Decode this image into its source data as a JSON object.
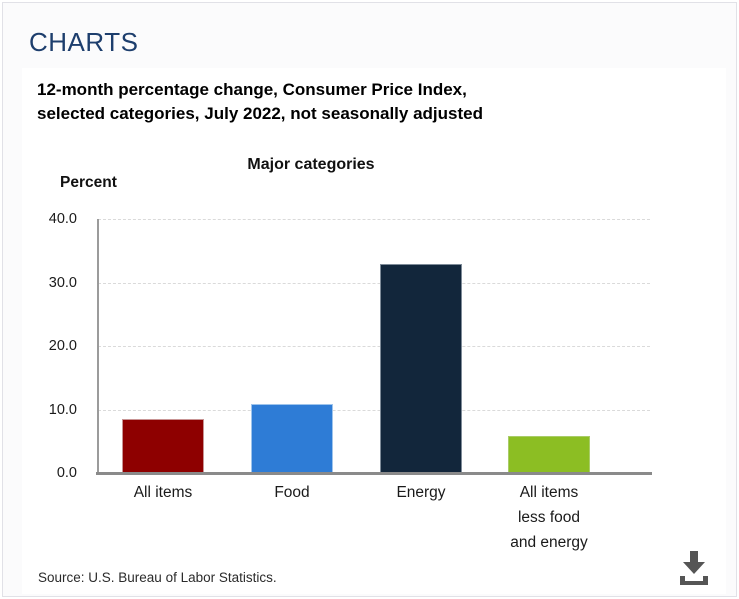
{
  "page": {
    "header": "CHARTS"
  },
  "chart": {
    "title_line1": "12-month percentage change, Consumer Price Index,",
    "title_line2": "selected categories, July 2022, not seasonally adjusted",
    "source": "Source: U.S. Bureau of Labor Statistics.",
    "download_icon": "download-icon"
  },
  "chart_data": {
    "type": "bar",
    "title": "Major categories",
    "ylabel": "Percent",
    "categories": [
      "All items",
      "Food",
      "Energy",
      "All items less food and energy"
    ],
    "category_display_lines": [
      [
        "All items"
      ],
      [
        "Food"
      ],
      [
        "Energy"
      ],
      [
        "All items",
        "less food",
        "and energy"
      ]
    ],
    "values": [
      8.5,
      10.9,
      32.9,
      5.9
    ],
    "bar_colors": [
      "#8E0000",
      "#2E7CD6",
      "#12263B",
      "#8CBE23"
    ],
    "bar_border_colors": [
      "#C89494",
      "#9EC4EC",
      "#7E8B98",
      "#A9CC68"
    ],
    "ylim": [
      0,
      40
    ],
    "yticks": [
      40,
      30,
      20,
      10,
      0
    ],
    "ytick_labels": [
      "40.0",
      "30.0",
      "20.0",
      "10.0",
      "0.0"
    ],
    "grid": "horizontal-dashed",
    "legend": "none",
    "axis_color": "#9B9B9B",
    "baseline_color": "#8A8A8A"
  }
}
